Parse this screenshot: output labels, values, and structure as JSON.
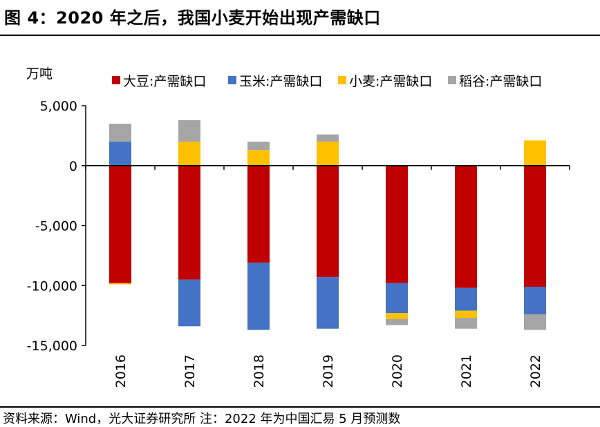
{
  "title": "图 4：2020 年之后，我国小麦开始出现产需缺口",
  "source_note": "资料来源：Wind，光大证券研究所  注：2022 年为中国汇易 5 月预测数",
  "chart_data": {
    "type": "bar",
    "stacked": true,
    "unit_label": "万吨",
    "categories": [
      "2016",
      "2017",
      "2018",
      "2019",
      "2020",
      "2021",
      "2022"
    ],
    "ylim": [
      -15000,
      5000
    ],
    "yticks": [
      5000,
      0,
      -5000,
      -10000,
      -15000
    ],
    "ytick_labels": [
      "5,000",
      "0",
      "-5,000",
      "-10,000",
      "-15,000"
    ],
    "legend_position": "top",
    "grid": false,
    "series": [
      {
        "name": "大豆:产需缺口",
        "color": "#c00000",
        "values": [
          -9800,
          -9500,
          -8100,
          -9300,
          -9800,
          -10200,
          -10100
        ]
      },
      {
        "name": "玉米:产需缺口",
        "color": "#4472c4",
        "values": [
          2000,
          -3900,
          -5600,
          -4300,
          -2500,
          -1900,
          -2300
        ]
      },
      {
        "name": "小麦:产需缺口",
        "color": "#ffc000",
        "values": [
          -100,
          2000,
          1300,
          2000,
          -500,
          -600,
          2100
        ]
      },
      {
        "name": "稻谷:产需缺口",
        "color": "#a5a5a5",
        "values": [
          1500,
          1800,
          700,
          600,
          -500,
          -900,
          -1300
        ]
      }
    ]
  }
}
